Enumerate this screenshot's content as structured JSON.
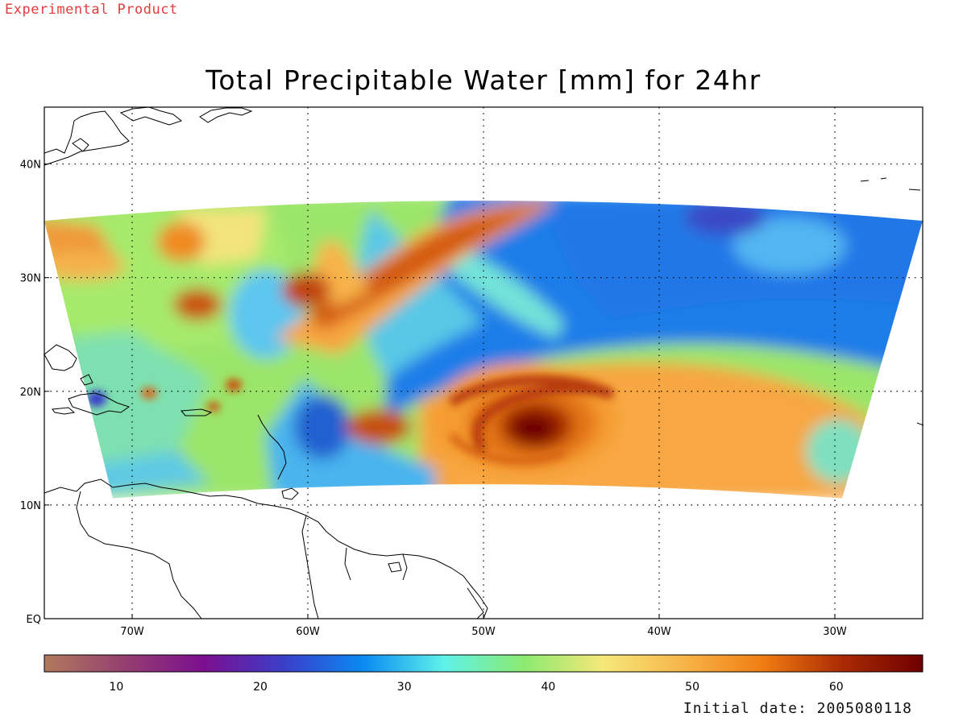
{
  "header": {
    "experimental_label": "Experimental Product",
    "title": "Total Precipitable Water [mm] for 24hr"
  },
  "footer": {
    "initial_date_label": "Initial date: 2005080118"
  },
  "map": {
    "projection": "latitude-longitude",
    "lon_range": [
      -75,
      -25
    ],
    "lat_range": [
      0,
      45
    ],
    "data_lon_range": [
      -75,
      -25
    ],
    "data_lat_top": 35,
    "data_lat_bottom": 12,
    "grid": "dotted",
    "lon_ticks": [
      {
        "value": -70,
        "label": "70W"
      },
      {
        "value": -60,
        "label": "60W"
      },
      {
        "value": -50,
        "label": "50W"
      },
      {
        "value": -40,
        "label": "40W"
      },
      {
        "value": -30,
        "label": "30W"
      }
    ],
    "lat_ticks": [
      {
        "value": 0,
        "label": "EQ"
      },
      {
        "value": 10,
        "label": "10N"
      },
      {
        "value": 20,
        "label": "20N"
      },
      {
        "value": 30,
        "label": "30N"
      },
      {
        "value": 40,
        "label": "40N"
      }
    ],
    "features": [
      {
        "name": "tropical cyclone",
        "lon": -47,
        "lat": 16.5,
        "tpw_mm": 66
      },
      {
        "name": "northeast moist plume",
        "tpw_mm": 60
      },
      {
        "name": "dry air region",
        "lon": -38,
        "lat": 31,
        "tpw_mm": 28
      }
    ]
  },
  "colorbar": {
    "range": [
      5,
      66
    ],
    "ticks": [
      10,
      20,
      30,
      40,
      50,
      60
    ],
    "colors": [
      "#b17a5c",
      "#953f70",
      "#7b0f8f",
      "#3a3ec9",
      "#0a8af2",
      "#5ef2ea",
      "#8bea70",
      "#f6e87a",
      "#f7b549",
      "#f07d12",
      "#a92a05",
      "#6e0000"
    ]
  }
}
